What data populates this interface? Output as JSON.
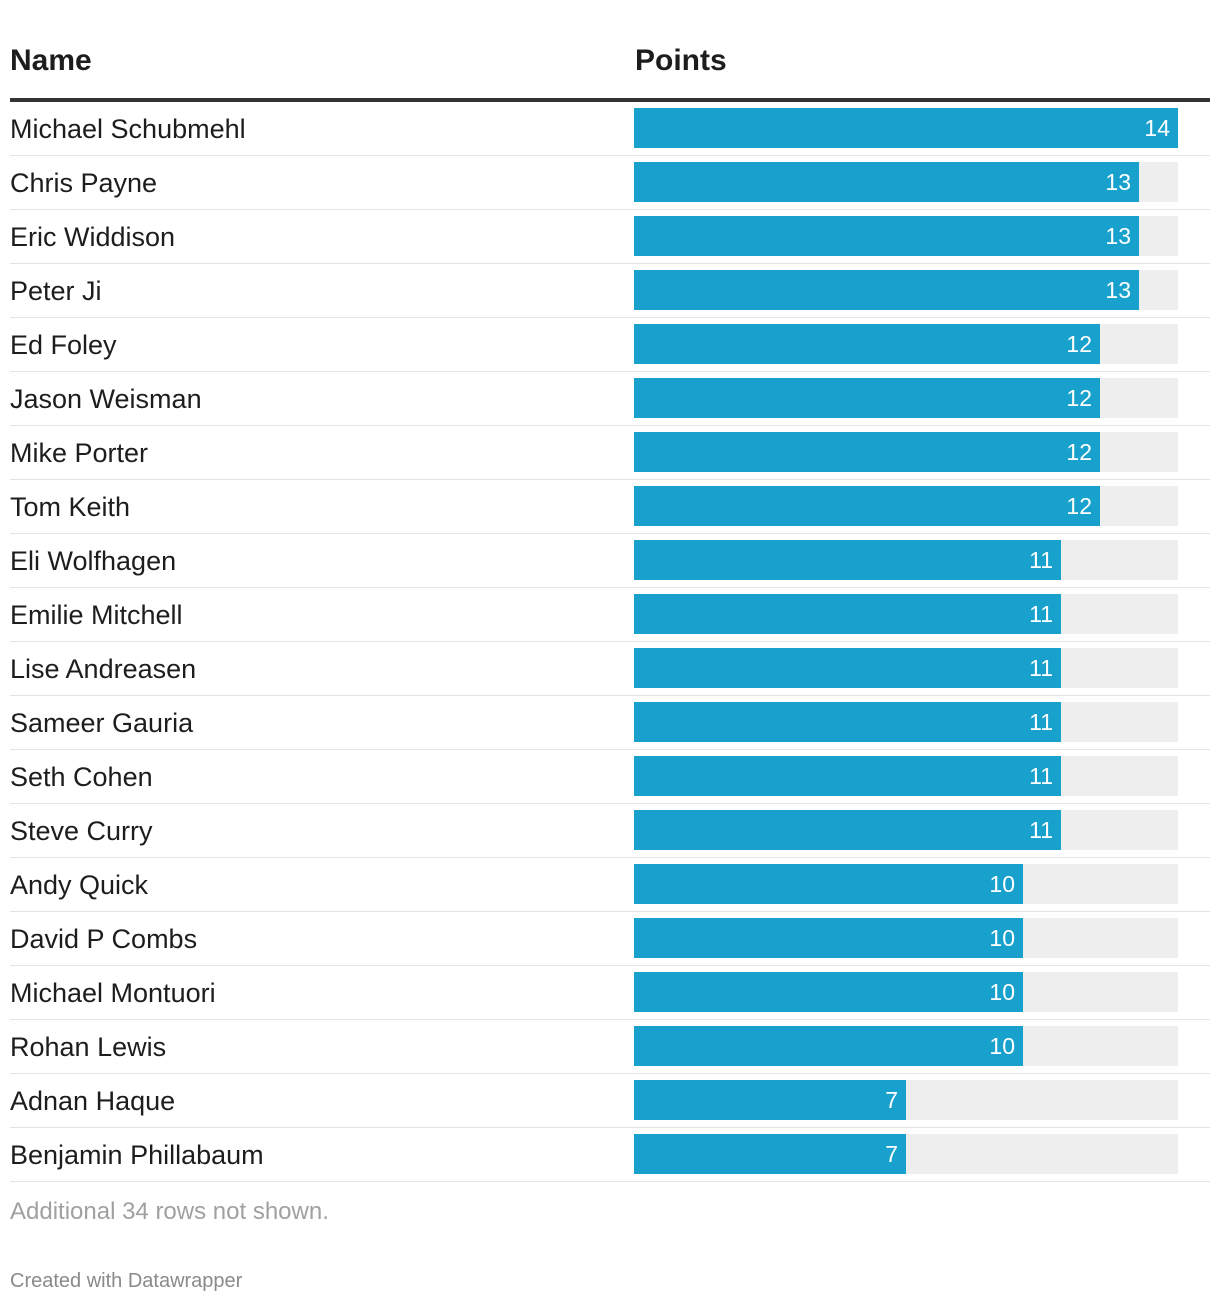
{
  "chart_data": {
    "type": "table",
    "columns": [
      "Name",
      "Points"
    ],
    "max_value": 14,
    "bar_color": "#18a1cd",
    "track_color": "#eeeeee",
    "rows": [
      {
        "name": "Michael Schubmehl",
        "points": 14
      },
      {
        "name": "Chris Payne",
        "points": 13
      },
      {
        "name": "Eric Widdison",
        "points": 13
      },
      {
        "name": "Peter Ji",
        "points": 13
      },
      {
        "name": "Ed Foley",
        "points": 12
      },
      {
        "name": "Jason Weisman",
        "points": 12
      },
      {
        "name": "Mike Porter",
        "points": 12
      },
      {
        "name": "Tom Keith",
        "points": 12
      },
      {
        "name": "Eli Wolfhagen",
        "points": 11
      },
      {
        "name": "Emilie Mitchell",
        "points": 11
      },
      {
        "name": "Lise Andreasen",
        "points": 11
      },
      {
        "name": "Sameer Gauria",
        "points": 11
      },
      {
        "name": "Seth Cohen",
        "points": 11
      },
      {
        "name": "Steve Curry",
        "points": 11
      },
      {
        "name": "Andy Quick",
        "points": 10
      },
      {
        "name": "David P Combs",
        "points": 10
      },
      {
        "name": "Michael Montuori",
        "points": 10
      },
      {
        "name": "Rohan Lewis",
        "points": 10
      },
      {
        "name": "Adnan Haque",
        "points": 7
      },
      {
        "name": "Benjamin Phillabaum",
        "points": 7
      }
    ]
  },
  "notes": "Additional 34 rows not shown.",
  "footer": "Created with Datawrapper"
}
